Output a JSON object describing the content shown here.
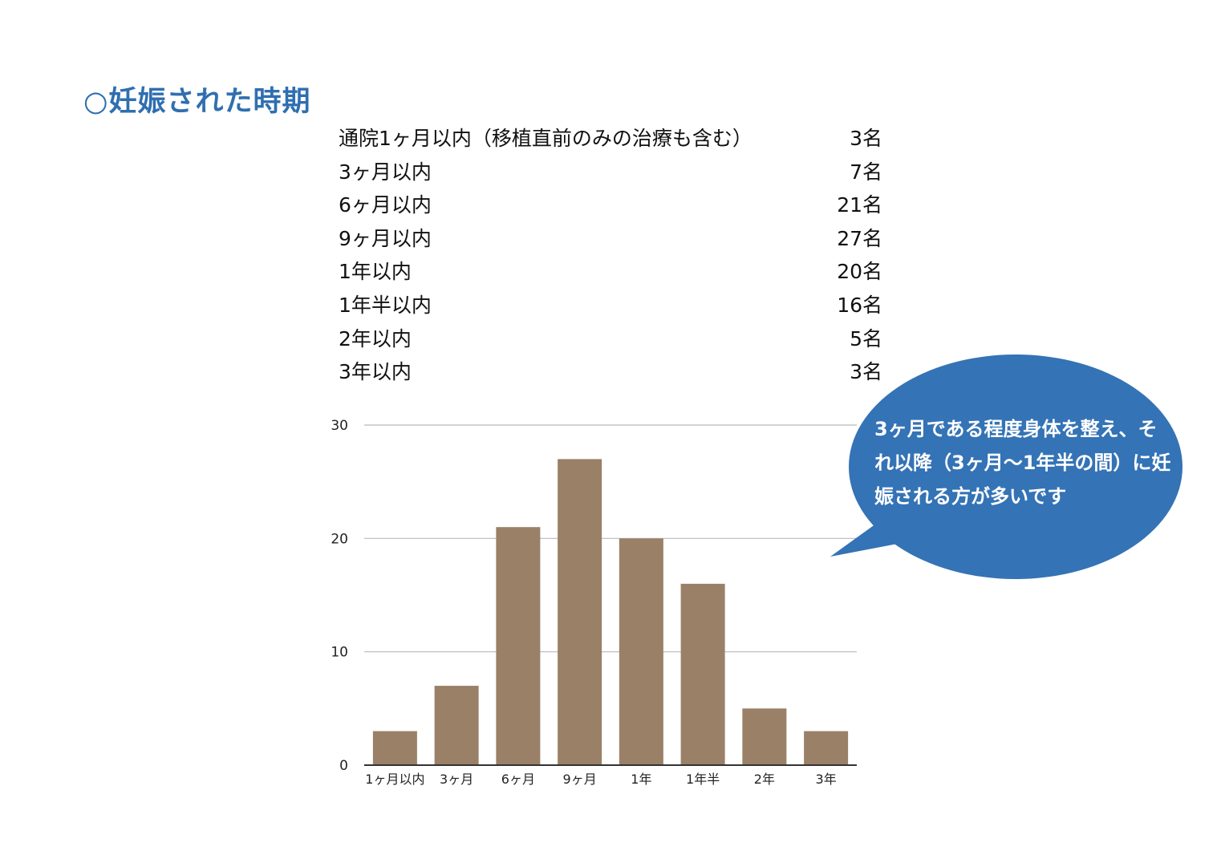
{
  "page": {
    "title": "○妊娠された時期"
  },
  "stats": [
    {
      "label": "通院1ヶ月以内（移植直前のみの治療も含む）",
      "value": "3名"
    },
    {
      "label": "3ヶ月以内",
      "value": "7名"
    },
    {
      "label": "6ヶ月以内",
      "value": "21名"
    },
    {
      "label": "9ヶ月以内",
      "value": "27名"
    },
    {
      "label": "1年以内",
      "value": "20名"
    },
    {
      "label": "1年半以内",
      "value": "16名"
    },
    {
      "label": "2年以内",
      "value": "5名"
    },
    {
      "label": "3年以内",
      "value": "3名"
    }
  ],
  "chart_data": {
    "type": "bar",
    "categories": [
      "1ヶ月以内",
      "3ヶ月",
      "6ヶ月",
      "9ヶ月",
      "1年",
      "1年半",
      "2年",
      "3年"
    ],
    "values": [
      3,
      7,
      21,
      27,
      20,
      16,
      5,
      3
    ],
    "ylim": [
      0,
      30
    ],
    "yticks": [
      0,
      10,
      20,
      30
    ],
    "grid": true,
    "title": "",
    "xlabel": "",
    "ylabel": ""
  },
  "callout": {
    "text": "3ヶ月である程度身体を整え、それ以降（3ヶ月〜1年半の間）に妊娠される方が多いです"
  },
  "colors": {
    "title": "#2f6fb0",
    "bar": "#998066",
    "grid": "#b9b9b9",
    "axis": "#333333",
    "bubble": "#3473b5",
    "bubble_text": "#ffffff"
  }
}
